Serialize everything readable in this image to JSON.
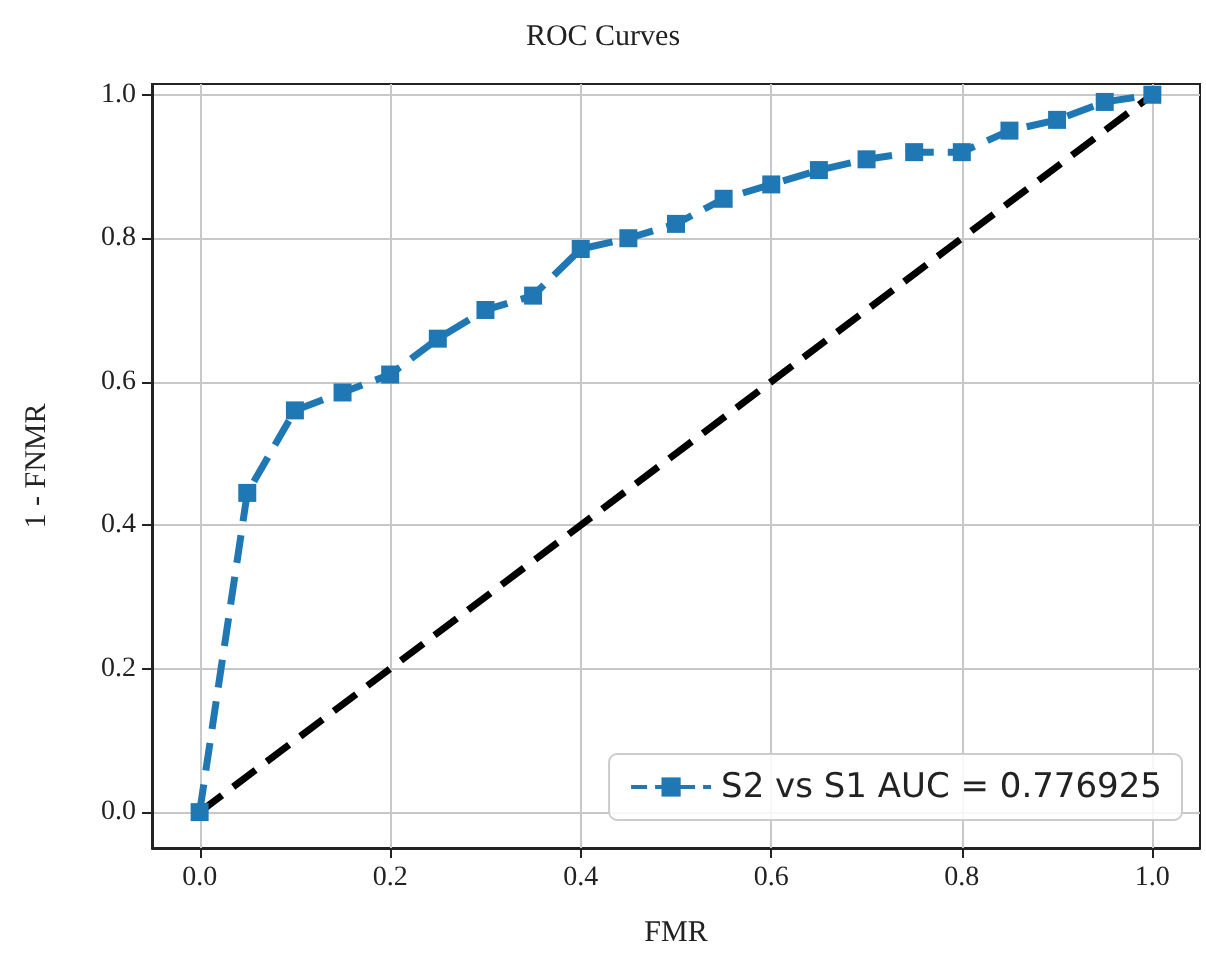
{
  "chart_data": {
    "type": "line",
    "title": "ROC Curves",
    "xlabel": "FMR",
    "ylabel": "1 - FNMR",
    "series": [
      {
        "name": "S2 vs S1 AUC = 0.776925",
        "color": "#1f77b4",
        "marker": "square",
        "line_style": "dashed",
        "x": [
          0,
          0.05,
          0.1,
          0.15,
          0.2,
          0.25,
          0.3,
          0.35,
          0.4,
          0.45,
          0.5,
          0.55,
          0.6,
          0.65,
          0.7,
          0.75,
          0.8,
          0.85,
          0.9,
          0.95,
          1.0
        ],
        "values": [
          0,
          0.445,
          0.56,
          0.585,
          0.61,
          0.66,
          0.7,
          0.72,
          0.785,
          0.8,
          0.82,
          0.855,
          0.875,
          0.895,
          0.91,
          0.92,
          0.92,
          0.95,
          0.965,
          0.99,
          1.0
        ]
      },
      {
        "color": "#000000",
        "marker": "none",
        "line_style": "dashed",
        "x": [
          0,
          1
        ],
        "values": [
          0,
          1
        ]
      }
    ],
    "xlim": [
      -0.05,
      1.05
    ],
    "ylim": [
      -0.05,
      1.015
    ],
    "xticks": [
      {
        "value": 0,
        "label": "0.0"
      },
      {
        "value": 0.2,
        "label": "0.2"
      },
      {
        "value": 0.4,
        "label": "0.4"
      },
      {
        "value": 0.6,
        "label": "0.6"
      },
      {
        "value": 0.8,
        "label": "0.8"
      },
      {
        "value": 1,
        "label": "1.0"
      }
    ],
    "yticks": [
      {
        "value": 0,
        "label": "0.0"
      },
      {
        "value": 0.2,
        "label": "0.2"
      },
      {
        "value": 0.4,
        "label": "0.4"
      },
      {
        "value": 0.6,
        "label": "0.6"
      },
      {
        "value": 0.8,
        "label": "0.8"
      },
      {
        "value": 1,
        "label": "1.0"
      }
    ],
    "grid": true,
    "legend": "bottom right"
  }
}
